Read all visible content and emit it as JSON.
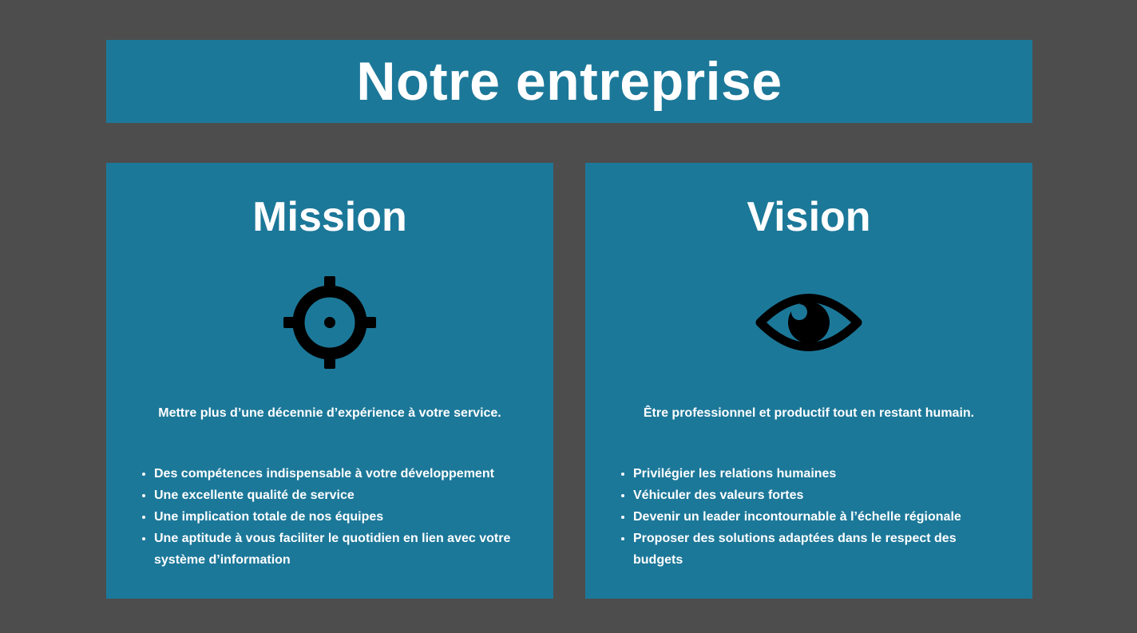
{
  "header": {
    "title": "Notre entreprise"
  },
  "mission": {
    "title": "Mission",
    "icon": "crosshair-icon",
    "tagline": "Mettre plus d’une décennie d’expérience à votre service.",
    "items": [
      "Des compétences indispensable à votre développement",
      "Une excellente qualité de service",
      "Une implication totale de nos équipes",
      "Une aptitude à vous faciliter le quotidien en lien avec votre système d’information"
    ]
  },
  "vision": {
    "title": "Vision",
    "icon": "eye-icon",
    "tagline": "Être professionnel et productif tout en restant humain.",
    "items": [
      "Privilégier les relations humaines",
      "Véhiculer des valeurs fortes",
      "Devenir un leader incontournable à l’échelle régionale",
      "Proposer des solutions adaptées dans le respect des budgets"
    ]
  },
  "colors": {
    "background": "#4d4d4d",
    "panel": "#1c7899",
    "text": "#ffffff",
    "icon": "#000000"
  }
}
